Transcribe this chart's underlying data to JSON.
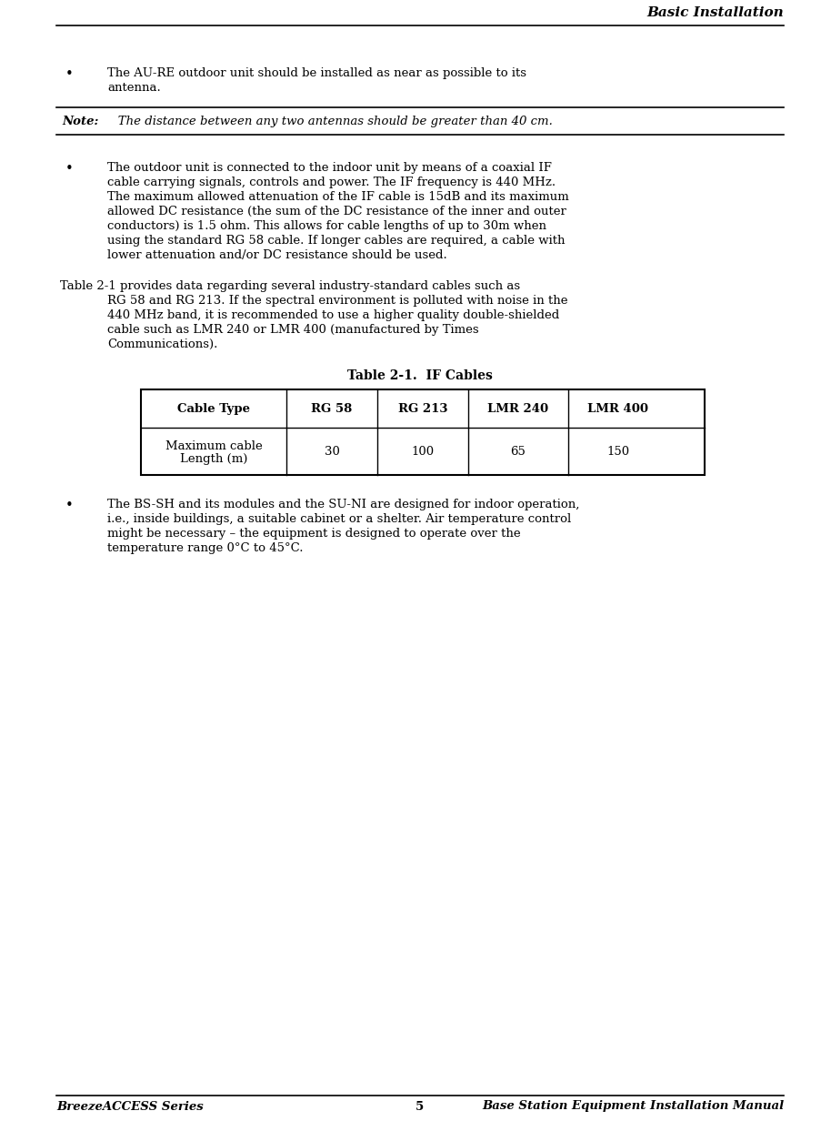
{
  "header_title": "Basic Installation",
  "footer_left": "BreezeACCESS Series",
  "footer_center": "5",
  "footer_right": "Base Station Equipment Installation Manual",
  "bullet1_lines": [
    "The AU-RE outdoor unit should be installed as near as possible to its",
    "antenna."
  ],
  "note_label": "Note:",
  "note_text": "   The distance between any two antennas should be greater than 40 cm.",
  "bullet2_lines": [
    "The outdoor unit is connected to the indoor unit by means of a coaxial IF",
    "cable carrying signals, controls and power. The IF frequency is 440 MHz.",
    "The maximum allowed attenuation of the IF cable is 15dB and its maximum",
    "allowed DC resistance (the sum of the DC resistance of the inner and outer",
    "conductors) is 1.5 ohm. This allows for cable lengths of up to 30m when",
    "using the standard RG 58 cable. If longer cables are required, a cable with",
    "lower attenuation and/or DC resistance should be used."
  ],
  "para_lines": [
    "Table 2-1 provides data regarding several industry-standard cables such as",
    "RG 58 and RG 213. If the spectral environment is polluted with noise in the",
    "440 MHz band, it is recommended to use a higher quality double-shielded",
    "cable such as LMR 240 or LMR 400 (manufactured by Times",
    "Communications)."
  ],
  "table_title": "Table 2-1.  IF Cables",
  "table_headers": [
    "Cable Type",
    "RG 58",
    "RG 213",
    "LMR 240",
    "LMR 400"
  ],
  "table_row_label": [
    "Maximum cable",
    "Length (m)"
  ],
  "table_values": [
    "30",
    "100",
    "65",
    "150"
  ],
  "bullet3_lines": [
    "The BS-SH and its modules and the SU-NI are designed for indoor operation,",
    "i.e., inside buildings, a suitable cabinet or a shelter. Air temperature control",
    "might be necessary – the equipment is designed to operate over the",
    "temperature range 0°C to 45°C."
  ],
  "bg_color": "#ffffff",
  "text_color": "#000000",
  "font_size": 9.5,
  "header_font_size": 11,
  "footer_font_size": 9.5
}
